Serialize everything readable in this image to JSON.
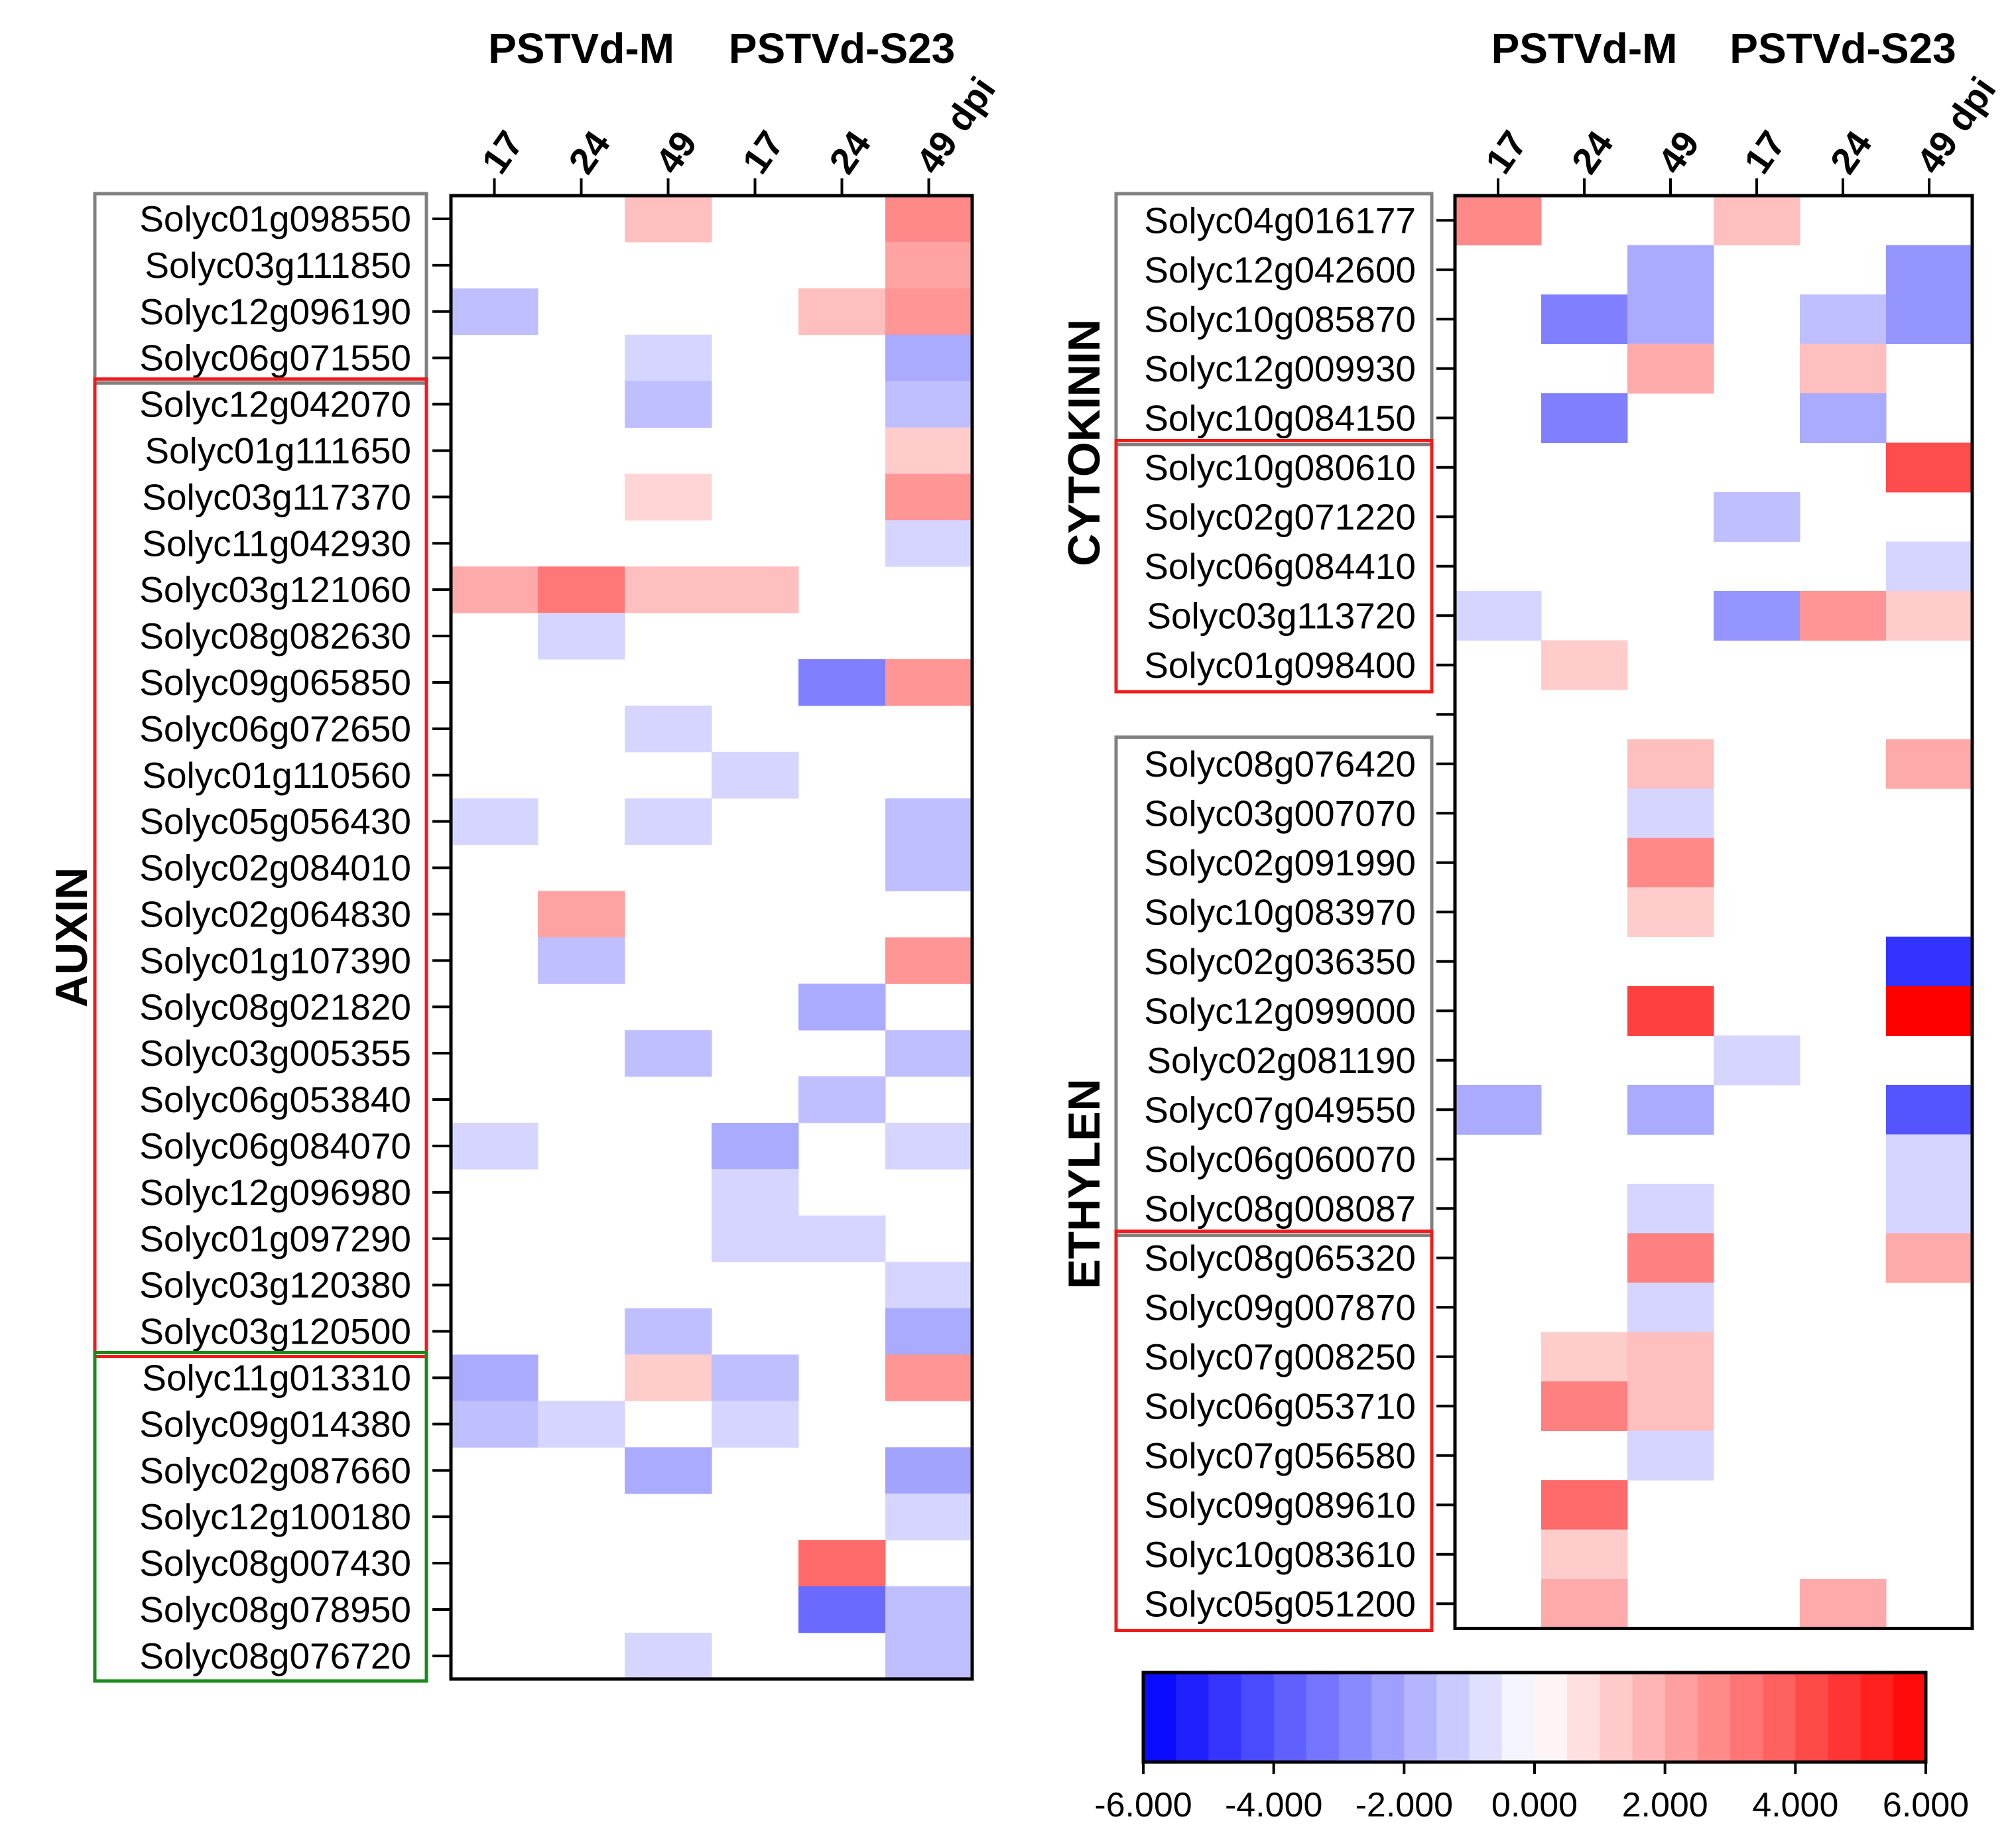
{
  "colors": {
    "neg": "#0000ff",
    "mid": "#ffffff",
    "pos": "#ff0000",
    "box_gray": "#808080",
    "box_red": "#ee1c1c",
    "box_green": "#1a8a1a"
  },
  "chart_data": [
    {
      "type": "heatmap",
      "panel": "left",
      "category": "AUXIN",
      "groups": [
        "PSTVd-M",
        "PSTVd-S23"
      ],
      "columns": [
        "17",
        "24",
        "49",
        "17",
        "24",
        "49 dpi"
      ],
      "color_range": [
        -6,
        6
      ],
      "rows": [
        {
          "gene": "Solyc01g098550",
          "box": "gray",
          "values": [
            0,
            0,
            1.5,
            0,
            0,
            2.8
          ]
        },
        {
          "gene": "Solyc03g111850",
          "box": "gray",
          "values": [
            0,
            0,
            0,
            0,
            0,
            2.2
          ]
        },
        {
          "gene": "Solyc12g096190",
          "box": "gray",
          "values": [
            -1.5,
            0,
            0,
            0,
            1.5,
            2.5
          ]
        },
        {
          "gene": "Solyc06g071550",
          "box": "gray",
          "values": [
            0,
            0,
            -1.0,
            0,
            0,
            -2.0
          ]
        },
        {
          "gene": "Solyc12g042070",
          "box": "red",
          "values": [
            0,
            0,
            -1.5,
            0,
            0,
            -1.5
          ]
        },
        {
          "gene": "Solyc01g111650",
          "box": "red",
          "values": [
            0,
            0,
            0,
            0,
            0,
            1.2
          ]
        },
        {
          "gene": "Solyc03g117370",
          "box": "red",
          "values": [
            0,
            0,
            1.0,
            0,
            0,
            2.5
          ]
        },
        {
          "gene": "Solyc11g042930",
          "box": "red",
          "values": [
            0,
            0,
            0,
            0,
            0,
            -1.0
          ]
        },
        {
          "gene": "Solyc03g121060",
          "box": "red",
          "values": [
            2.0,
            3.2,
            1.5,
            1.5,
            0,
            0
          ]
        },
        {
          "gene": "Solyc08g082630",
          "box": "red",
          "values": [
            0,
            -1.0,
            0,
            0,
            0,
            0
          ]
        },
        {
          "gene": "Solyc09g065850",
          "box": "red",
          "values": [
            0,
            0,
            0,
            0,
            -3.0,
            2.5
          ]
        },
        {
          "gene": "Solyc06g072650",
          "box": "red",
          "values": [
            0,
            0,
            -1.0,
            0,
            0,
            0
          ]
        },
        {
          "gene": "Solyc01g110560",
          "box": "red",
          "values": [
            0,
            0,
            0,
            -1.0,
            0,
            0
          ]
        },
        {
          "gene": "Solyc05g056430",
          "box": "red",
          "values": [
            -1.0,
            0,
            -1.0,
            0,
            0,
            -1.5
          ]
        },
        {
          "gene": "Solyc02g084010",
          "box": "red",
          "values": [
            0,
            0,
            0,
            0,
            0,
            -1.5
          ]
        },
        {
          "gene": "Solyc02g064830",
          "box": "red",
          "values": [
            0,
            2.2,
            0,
            0,
            0,
            0
          ]
        },
        {
          "gene": "Solyc01g107390",
          "box": "red",
          "values": [
            0,
            -1.5,
            0,
            0,
            0,
            2.5
          ]
        },
        {
          "gene": "Solyc08g021820",
          "box": "red",
          "values": [
            0,
            0,
            0,
            0,
            -2.0,
            0
          ]
        },
        {
          "gene": "Solyc03g005355",
          "box": "red",
          "values": [
            0,
            0,
            -1.5,
            0,
            0,
            -1.5
          ]
        },
        {
          "gene": "Solyc06g053840",
          "box": "red",
          "values": [
            0,
            0,
            0,
            0,
            -1.5,
            0
          ]
        },
        {
          "gene": "Solyc06g084070",
          "box": "red",
          "values": [
            -1.0,
            0,
            0,
            -2.0,
            0,
            -1.0
          ]
        },
        {
          "gene": "Solyc12g096980",
          "box": "red",
          "values": [
            0,
            0,
            0,
            -1.0,
            0,
            0
          ]
        },
        {
          "gene": "Solyc01g097290",
          "box": "red",
          "values": [
            0,
            0,
            0,
            -1.0,
            -1.0,
            0
          ]
        },
        {
          "gene": "Solyc03g120380",
          "box": "red",
          "values": [
            0,
            0,
            0,
            0,
            0,
            -1.0
          ]
        },
        {
          "gene": "Solyc03g120500",
          "box": "red",
          "values": [
            0,
            0,
            -1.5,
            0,
            0,
            -2.0
          ]
        },
        {
          "gene": "Solyc11g013310",
          "box": "green",
          "values": [
            -2.0,
            0,
            1.2,
            -1.5,
            0,
            2.5
          ]
        },
        {
          "gene": "Solyc09g014380",
          "box": "green",
          "values": [
            -1.5,
            -1.0,
            0,
            -1.0,
            0,
            0
          ]
        },
        {
          "gene": "Solyc02g087660",
          "box": "green",
          "values": [
            0,
            0,
            -2.0,
            0,
            0,
            -2.2
          ]
        },
        {
          "gene": "Solyc12g100180",
          "box": "green",
          "values": [
            0,
            0,
            0,
            0,
            0,
            -1.0
          ]
        },
        {
          "gene": "Solyc08g007430",
          "box": "green",
          "values": [
            0,
            0,
            0,
            0,
            3.5,
            0
          ]
        },
        {
          "gene": "Solyc08g078950",
          "box": "green",
          "values": [
            0,
            0,
            0,
            0,
            -3.5,
            -1.5
          ]
        },
        {
          "gene": "Solyc08g076720",
          "box": "green",
          "values": [
            0,
            0,
            -1.0,
            0,
            0,
            -1.5
          ]
        }
      ]
    },
    {
      "type": "heatmap",
      "panel": "right",
      "categories": [
        "CYTOKININ",
        "ETHYLEN"
      ],
      "groups": [
        "PSTVd-M",
        "PSTVd-S23"
      ],
      "columns": [
        "17",
        "24",
        "49",
        "17",
        "24",
        "49 dpi"
      ],
      "color_range": [
        -6,
        6
      ],
      "rows": [
        {
          "gene": "Solyc04g016177",
          "box": "gray",
          "values": [
            2.8,
            0,
            0,
            1.5,
            0,
            0
          ]
        },
        {
          "gene": "Solyc12g042600",
          "box": "gray",
          "values": [
            0,
            0,
            -2.0,
            0,
            0,
            -2.5
          ]
        },
        {
          "gene": "Solyc10g085870",
          "box": "gray",
          "values": [
            0,
            -3.0,
            -2.0,
            0,
            -1.5,
            -2.5
          ]
        },
        {
          "gene": "Solyc12g009930",
          "box": "gray",
          "values": [
            0,
            0,
            2.0,
            0,
            1.5,
            0
          ]
        },
        {
          "gene": "Solyc10g084150",
          "box": "gray",
          "values": [
            0,
            -3.0,
            0,
            0,
            -2.0,
            0
          ]
        },
        {
          "gene": "Solyc10g080610",
          "box": "red",
          "values": [
            0,
            0,
            0,
            0,
            0,
            4.2
          ]
        },
        {
          "gene": "Solyc02g071220",
          "box": "red",
          "values": [
            0,
            0,
            0,
            -1.5,
            0,
            0
          ]
        },
        {
          "gene": "Solyc06g084410",
          "box": "red",
          "values": [
            0,
            0,
            0,
            0,
            0,
            -1.0
          ]
        },
        {
          "gene": "Solyc03g113720",
          "box": "red",
          "values": [
            -1.0,
            0,
            0,
            -2.5,
            2.5,
            1.2
          ]
        },
        {
          "gene": "Solyc01g098400",
          "box": "red",
          "values": [
            0,
            1.2,
            0,
            0,
            0,
            0
          ]
        },
        {
          "gene": "",
          "box": "none",
          "values": [
            0,
            0,
            0,
            0,
            0,
            0
          ]
        },
        {
          "gene": "Solyc08g076420",
          "box": "gray",
          "values": [
            0,
            0,
            1.5,
            0,
            0,
            2.0
          ]
        },
        {
          "gene": "Solyc03g007070",
          "box": "gray",
          "values": [
            0,
            0,
            -1.0,
            0,
            0,
            0
          ]
        },
        {
          "gene": "Solyc02g091990",
          "box": "gray",
          "values": [
            0,
            0,
            2.8,
            0,
            0,
            0
          ]
        },
        {
          "gene": "Solyc10g083970",
          "box": "gray",
          "values": [
            0,
            0,
            1.2,
            0,
            0,
            0
          ]
        },
        {
          "gene": "Solyc02g036350",
          "box": "gray",
          "values": [
            0,
            0,
            0,
            0,
            0,
            -4.8
          ]
        },
        {
          "gene": "Solyc12g099000",
          "box": "gray",
          "values": [
            0,
            0,
            4.5,
            0,
            0,
            6.0
          ]
        },
        {
          "gene": "Solyc02g081190",
          "box": "gray",
          "values": [
            0,
            0,
            0,
            -1.0,
            0,
            0
          ]
        },
        {
          "gene": "Solyc07g049550",
          "box": "gray",
          "values": [
            -2.0,
            0,
            -2.0,
            0,
            0,
            -4.0
          ]
        },
        {
          "gene": "Solyc06g060070",
          "box": "gray",
          "values": [
            0,
            0,
            0,
            0,
            0,
            -1.0
          ]
        },
        {
          "gene": "Solyc08g008087",
          "box": "gray",
          "values": [
            0,
            0,
            -1.0,
            0,
            0,
            -1.0
          ]
        },
        {
          "gene": "Solyc08g065320",
          "box": "red",
          "values": [
            0,
            0,
            3.0,
            0,
            0,
            2.0
          ]
        },
        {
          "gene": "Solyc09g007870",
          "box": "red",
          "values": [
            0,
            0,
            -1.0,
            0,
            0,
            0
          ]
        },
        {
          "gene": "Solyc07g008250",
          "box": "red",
          "values": [
            0,
            1.2,
            1.5,
            0,
            0,
            0
          ]
        },
        {
          "gene": "Solyc06g053710",
          "box": "red",
          "values": [
            0,
            3.0,
            1.5,
            0,
            0,
            0
          ]
        },
        {
          "gene": "Solyc07g056580",
          "box": "red",
          "values": [
            0,
            0,
            -1.0,
            0,
            0,
            0
          ]
        },
        {
          "gene": "Solyc09g089610",
          "box": "red",
          "values": [
            0,
            3.5,
            0,
            0,
            0,
            0
          ]
        },
        {
          "gene": "Solyc10g083610",
          "box": "red",
          "values": [
            0,
            1.2,
            0,
            0,
            0,
            0
          ]
        },
        {
          "gene": "Solyc05g051200",
          "box": "red",
          "values": [
            0,
            2.0,
            0,
            0,
            2.0,
            0
          ]
        }
      ]
    }
  ],
  "colorbar": {
    "min": -6,
    "max": 6,
    "steps": 24,
    "tick_labels": [
      "-6.000",
      "-4.000",
      "-2.000",
      "0.000",
      "2.000",
      "4.000",
      "6.000"
    ]
  }
}
